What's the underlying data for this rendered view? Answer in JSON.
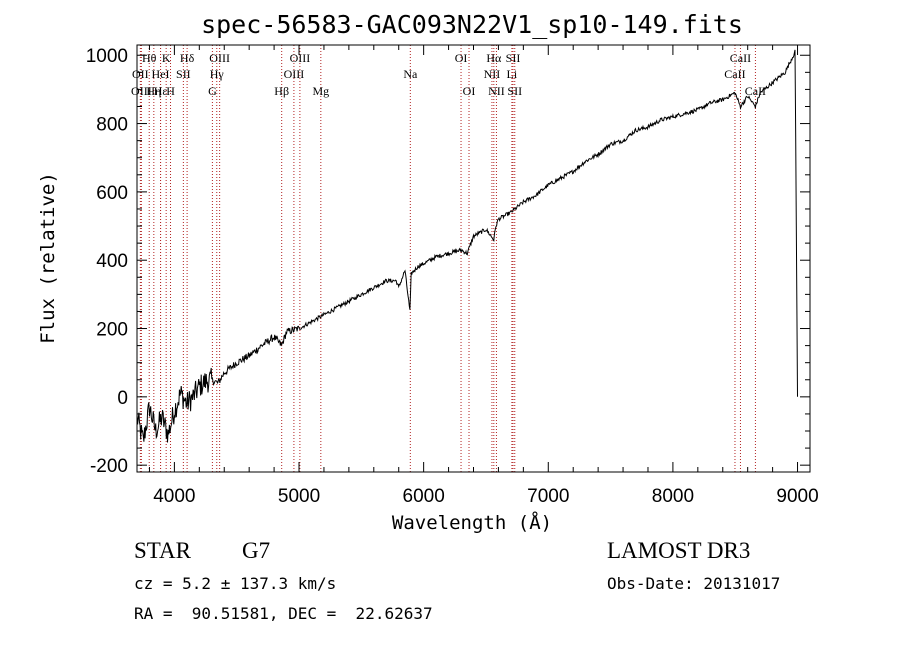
{
  "chart_data": {
    "type": "line",
    "title": "spec-56583-GAC093N22V1_sp10-149.fits",
    "xlabel": "Wavelength (Å)",
    "ylabel": "Flux (relative)",
    "xlim": [
      3700,
      9100
    ],
    "ylim": [
      -220,
      1030
    ],
    "x_ticks": [
      4000,
      5000,
      6000,
      7000,
      8000,
      9000
    ],
    "y_ticks": [
      -200,
      0,
      200,
      400,
      600,
      800,
      1000
    ],
    "series": [
      {
        "name": "flux",
        "x": [
          3700,
          3750,
          3800,
          3850,
          3900,
          3950,
          4000,
          4050,
          4100,
          4150,
          4200,
          4250,
          4300,
          4350,
          4400,
          4500,
          4600,
          4700,
          4800,
          4860,
          4900,
          5000,
          5100,
          5200,
          5300,
          5400,
          5500,
          5600,
          5700,
          5780,
          5800,
          5850,
          5890,
          5900,
          5950,
          6000,
          6100,
          6200,
          6300,
          6350,
          6400,
          6500,
          6563,
          6580,
          6600,
          6700,
          6800,
          6900,
          7000,
          7100,
          7200,
          7300,
          7400,
          7500,
          7600,
          7700,
          7800,
          7900,
          8000,
          8100,
          8200,
          8300,
          8400,
          8498,
          8542,
          8600,
          8662,
          8700,
          8800,
          8900,
          8980,
          9000
        ],
        "y": [
          -60,
          -130,
          -30,
          -100,
          -60,
          -110,
          -40,
          10,
          -20,
          0,
          30,
          45,
          50,
          40,
          70,
          100,
          120,
          150,
          175,
          150,
          190,
          200,
          220,
          240,
          260,
          280,
          300,
          320,
          340,
          340,
          320,
          370,
          250,
          360,
          380,
          390,
          410,
          420,
          430,
          420,
          470,
          490,
          460,
          500,
          520,
          540,
          570,
          590,
          620,
          640,
          660,
          690,
          710,
          740,
          750,
          780,
          790,
          810,
          820,
          830,
          840,
          860,
          870,
          890,
          850,
          880,
          850,
          890,
          920,
          950,
          1010,
          0
        ]
      }
    ],
    "spectral_lines": [
      {
        "name": "Hθ",
        "x": 3798,
        "row": 1
      },
      {
        "name": "OII",
        "x": 3727,
        "row": 2
      },
      {
        "name": "OIII",
        "x": 3735,
        "row": 3
      },
      {
        "name": "Hε",
        "x": 3889,
        "row": 3
      },
      {
        "name": "Hη",
        "x": 3835,
        "row": 3
      },
      {
        "name": "K",
        "x": 3934,
        "row": 1
      },
      {
        "name": "HeI",
        "x": 3889,
        "row": 2
      },
      {
        "name": "SII",
        "x": 4072,
        "row": 2
      },
      {
        "name": "H",
        "x": 3969,
        "row": 3
      },
      {
        "name": "Hδ",
        "x": 4102,
        "row": 1
      },
      {
        "name": "OIII",
        "x": 4363,
        "row": 1
      },
      {
        "name": "Hγ",
        "x": 4340,
        "row": 2
      },
      {
        "name": "G",
        "x": 4305,
        "row": 3
      },
      {
        "name": "OIII",
        "x": 5007,
        "row": 1
      },
      {
        "name": "OIII",
        "x": 4959,
        "row": 2
      },
      {
        "name": "Hβ",
        "x": 4861,
        "row": 3
      },
      {
        "name": "Mg",
        "x": 5175,
        "row": 3
      },
      {
        "name": "Na",
        "x": 5893,
        "row": 2
      },
      {
        "name": "OI",
        "x": 6300,
        "row": 1
      },
      {
        "name": "OI",
        "x": 6364,
        "row": 3
      },
      {
        "name": "Hα",
        "x": 6563,
        "row": 1
      },
      {
        "name": "SII",
        "x": 6717,
        "row": 1
      },
      {
        "name": "NII",
        "x": 6548,
        "row": 2
      },
      {
        "name": "Li",
        "x": 6708,
        "row": 2
      },
      {
        "name": "NII",
        "x": 6584,
        "row": 3
      },
      {
        "name": "SII",
        "x": 6731,
        "row": 3
      },
      {
        "name": "CaII",
        "x": 8542,
        "row": 1
      },
      {
        "name": "CaII",
        "x": 8498,
        "row": 2
      },
      {
        "name": "CaII",
        "x": 8662,
        "row": 3
      }
    ]
  },
  "info": {
    "class": "STAR",
    "subclass": "G7",
    "survey": "LAMOST DR3",
    "cz": "cz = 5.2 ± 137.3 km/s",
    "obs_date": "Obs-Date: 20131017",
    "radec": "RA =  90.51581, DEC =  22.62637"
  },
  "colors": {
    "spectrum": "#000000",
    "line_marker": "#b22222",
    "axes": "#000000"
  }
}
